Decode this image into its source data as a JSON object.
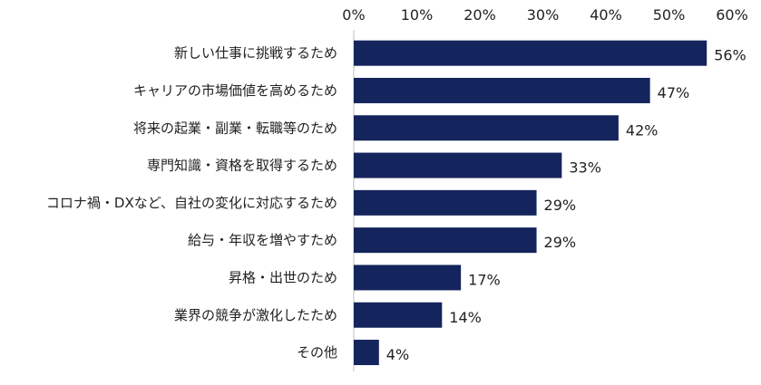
{
  "chart_data": {
    "type": "bar",
    "orientation": "horizontal",
    "title": "",
    "xlabel": "",
    "ylabel": "",
    "xlim": [
      0,
      60
    ],
    "ticks": [
      0,
      10,
      20,
      30,
      40,
      50,
      60
    ],
    "tick_labels": [
      "0%",
      "10%",
      "20%",
      "30%",
      "40%",
      "50%",
      "60%"
    ],
    "tick_position": "top",
    "grid": false,
    "legend": "none",
    "bar_color": "#14245c",
    "categories": [
      "新しい仕事に挑戦するため",
      "キャリアの市場価値を高めるため",
      "将来の起業・副業・転職等のため",
      "専門知識・資格を取得するため",
      "コロナ禍・DXなど、自社の変化に対応するため",
      "給与・年収を増やすため",
      "昇格・出世のため",
      "業界の競争が激化したため",
      "その他"
    ],
    "values": [
      56,
      47,
      42,
      33,
      29,
      29,
      17,
      14,
      4
    ],
    "data_labels": [
      "56%",
      "47%",
      "42%",
      "33%",
      "29%",
      "29%",
      "17%",
      "14%",
      "4%"
    ]
  }
}
